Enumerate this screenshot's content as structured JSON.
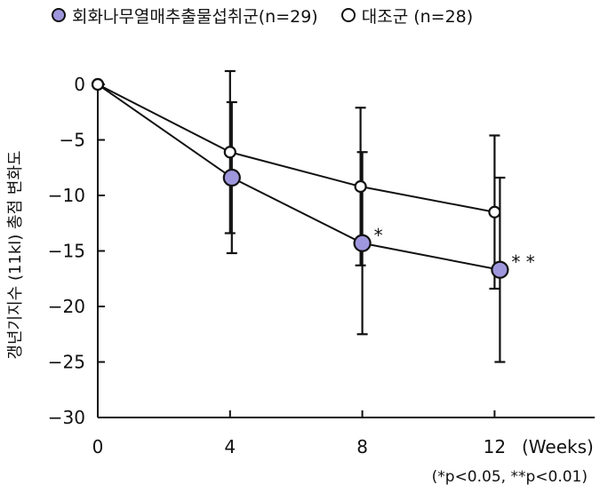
{
  "legend": {
    "treatment_label": "회화나무열매추출물섭취군(n=29)",
    "control_label": "대조군 (n=28)"
  },
  "colors": {
    "treatment": "#9f97dd",
    "control": "#ffffff",
    "axis": "#111111"
  },
  "footnote": "(*p<0.05, **p<0.01)",
  "chart_data": {
    "type": "line",
    "ylabel": "갱년기지수 (11kl) 총점 변화도",
    "xlabel": "(Weeks)",
    "x": [
      0,
      4,
      8,
      12
    ],
    "xticks": [
      "0",
      "4",
      "8",
      "12"
    ],
    "yticks": [
      "0",
      "−5",
      "−10",
      "−15",
      "−20",
      "−25",
      "−30"
    ],
    "ylim": [
      -30,
      0
    ],
    "xlim": [
      0,
      14
    ],
    "grid": false,
    "legend_position": "top",
    "series": [
      {
        "name": "회화나무열매추출물섭취군(n=29)",
        "marker": "filled",
        "values": [
          0,
          -8.4,
          -14.3,
          -16.7
        ],
        "error": [
          0,
          6.8,
          8.2,
          8.3
        ],
        "sig": [
          "",
          "",
          "*",
          "**"
        ]
      },
      {
        "name": "대조군 (n=28)",
        "marker": "hollow",
        "values": [
          0,
          -6.1,
          -9.2,
          -11.5
        ],
        "error": [
          0,
          7.3,
          7.1,
          6.9
        ],
        "sig": [
          "",
          "",
          "",
          ""
        ]
      }
    ]
  }
}
